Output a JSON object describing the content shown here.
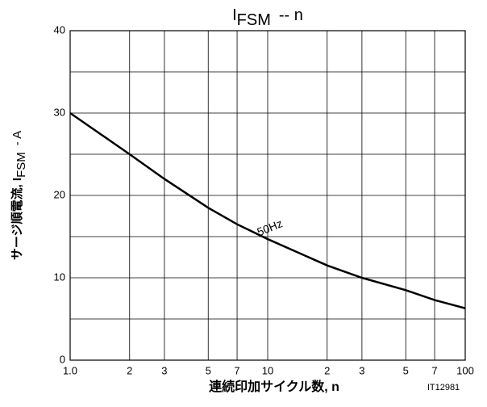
{
  "chart_data": {
    "type": "line",
    "title": {
      "main": "I",
      "sub": "FSM",
      "tail": "-- n"
    },
    "y_label": {
      "main": "サージ順電流, I",
      "sub": "FSM",
      "tail": "- A"
    },
    "x_label": "連続印加サイクル数, n",
    "code": "IT12981",
    "annotation": "50Hz",
    "x": [
      1,
      2,
      3,
      5,
      7,
      10,
      20,
      30,
      50,
      70,
      100
    ],
    "series": [
      {
        "color": "#000000",
        "values": [
          30,
          25,
          22,
          18.5,
          16.5,
          14.7,
          11.5,
          10,
          8.5,
          7.3,
          6.3
        ]
      }
    ],
    "xlog": true,
    "xlim": [
      1,
      100
    ],
    "xticks": [
      {
        "value": 1,
        "label": "1.0"
      },
      2,
      3,
      5,
      7,
      10,
      {
        "value": 20,
        "label": "2"
      },
      {
        "value": 30,
        "label": "3"
      },
      {
        "value": 50,
        "label": "5"
      },
      {
        "value": 70,
        "label": "7"
      },
      100
    ],
    "ylim": [
      0,
      40
    ],
    "yticks": [
      0,
      10,
      20,
      30,
      40
    ],
    "yminor": [
      5,
      15,
      25,
      35
    ],
    "grid": true
  }
}
